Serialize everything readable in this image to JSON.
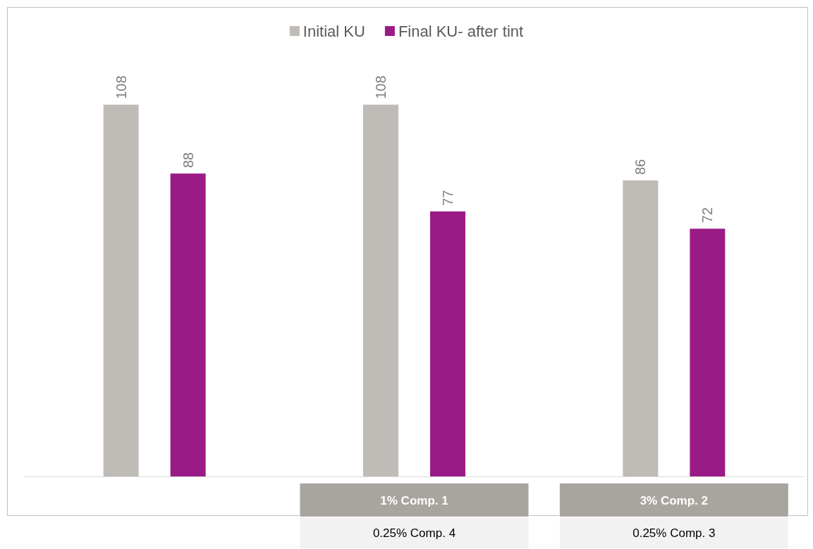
{
  "chart_data": {
    "type": "bar",
    "categories": [
      null,
      "1% Comp. 1\n0.25% Comp. 4",
      "3% Comp. 2\n0.25% Comp. 3"
    ],
    "series": [
      {
        "name": "Initial KU",
        "color": "#bfbbb6",
        "values": [
          108,
          108,
          86
        ]
      },
      {
        "name": "Final KU- after tint",
        "color": "#9b1b86",
        "values": [
          88,
          77,
          72
        ]
      }
    ],
    "data_labels": true,
    "legend": "top",
    "grid": false,
    "tick_labels": "x"
  }
}
